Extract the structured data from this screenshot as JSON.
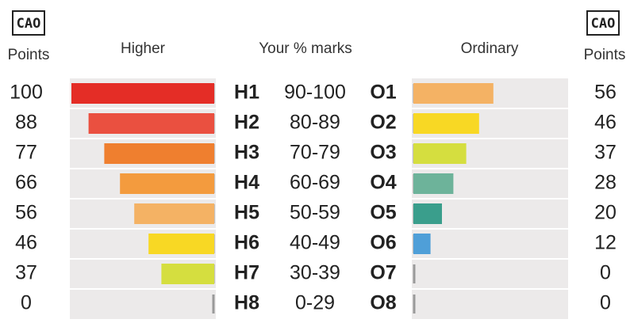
{
  "chart_data": {
    "type": "diverging-bar",
    "logo": "CAO",
    "points_label": "Points",
    "center_title": "Your % marks",
    "categories": [
      "90-100",
      "80-89",
      "70-79",
      "60-69",
      "50-59",
      "40-49",
      "30-39",
      "0-29"
    ],
    "xlim": [
      0,
      100
    ],
    "series": [
      {
        "name": "Higher",
        "side": "left",
        "grades": [
          "H1",
          "H2",
          "H3",
          "H4",
          "H5",
          "H6",
          "H7",
          "H8"
        ],
        "values": [
          100,
          88,
          77,
          66,
          56,
          46,
          37,
          0
        ],
        "colors": [
          "#e42d26",
          "#ea5040",
          "#ef7f2f",
          "#f39b3e",
          "#f4b264",
          "#f8d824",
          "#d5de3f",
          "#9a9a9a"
        ]
      },
      {
        "name": "Ordinary",
        "side": "right",
        "grades": [
          "O1",
          "O2",
          "O3",
          "O4",
          "O5",
          "O6",
          "O7",
          "O8"
        ],
        "values": [
          56,
          46,
          37,
          28,
          20,
          12,
          0,
          0
        ],
        "colors": [
          "#f4b264",
          "#f8d824",
          "#d5de3f",
          "#6db39a",
          "#3a9e8c",
          "#4f9fd8",
          "#9a9a9a",
          "#9a9a9a"
        ]
      }
    ]
  }
}
